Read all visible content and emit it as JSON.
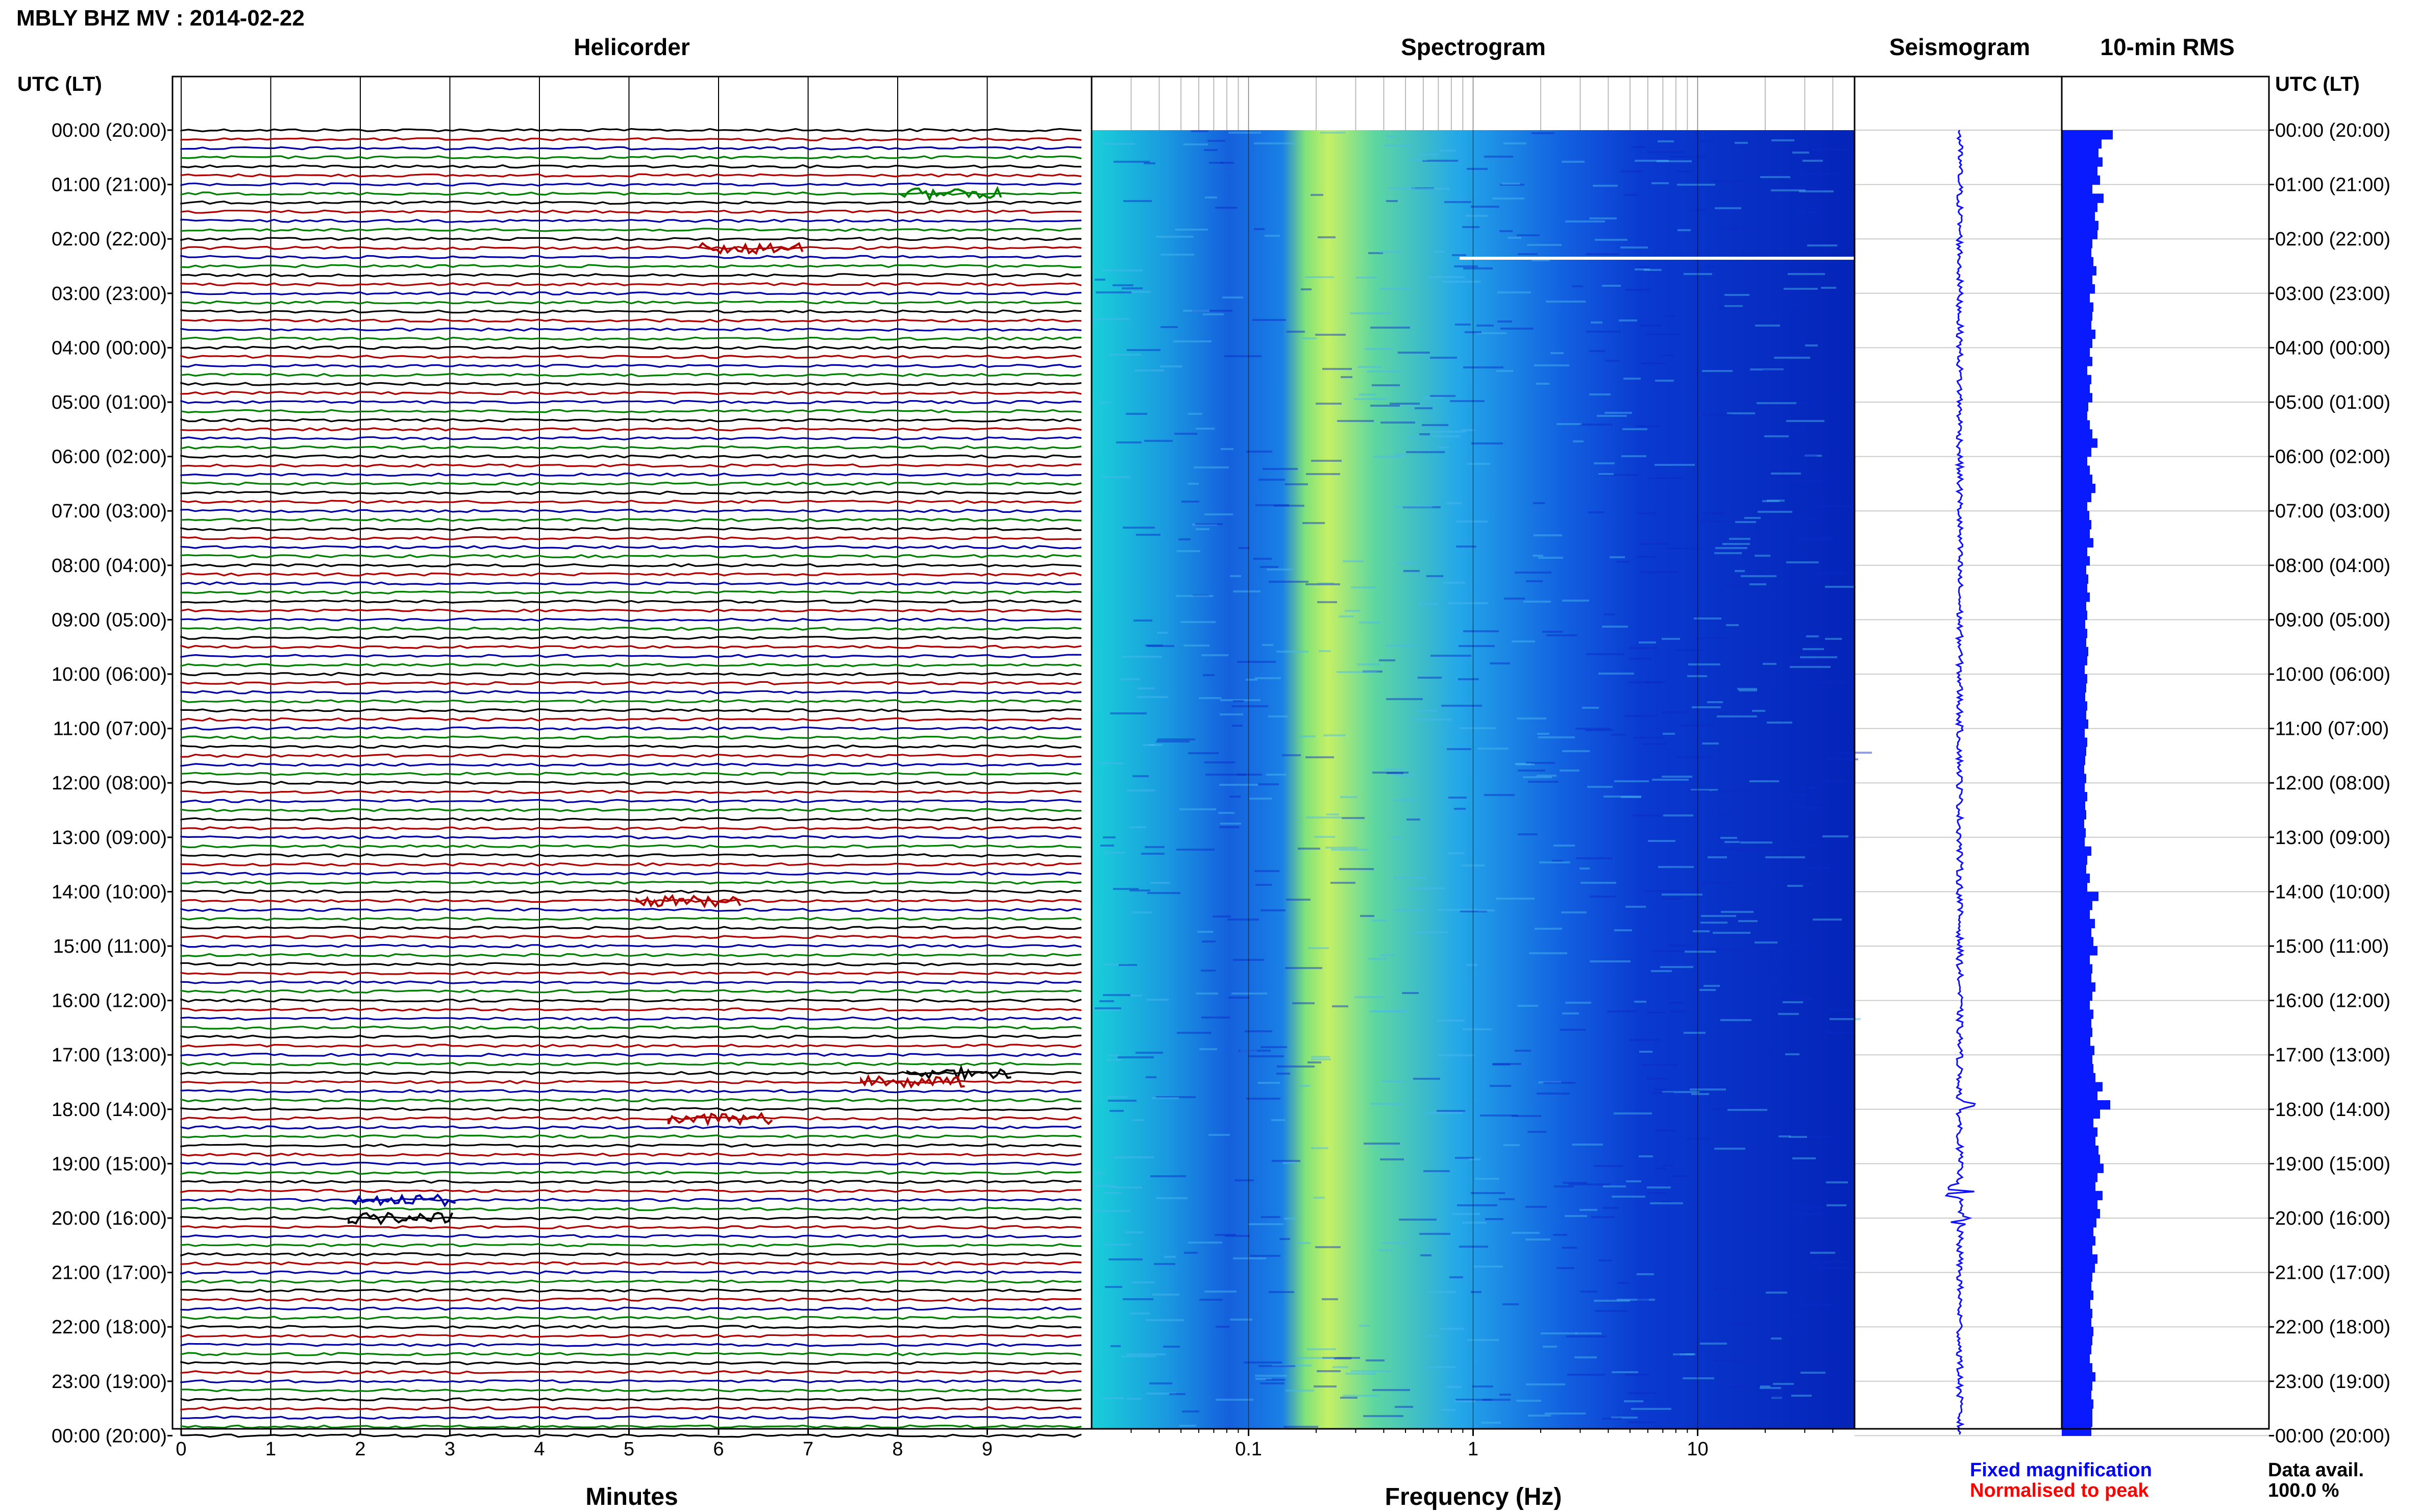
{
  "header": {
    "title": "MBLY BHZ MV : 2014-02-22",
    "utc_label_left": "UTC (LT)",
    "utc_label_right": "UTC (LT)"
  },
  "panels": {
    "helicorder_title": "Helicorder",
    "spectrogram_title": "Spectrogram",
    "seismogram_title": "Seismogram",
    "rms_title": "10-min RMS"
  },
  "axes": {
    "minutes_label": "Minutes",
    "frequency_label": "Frequency (Hz)"
  },
  "legend": {
    "fixed": "Fixed magnification",
    "normalised": "Normalised to peak",
    "data_avail_label": "Data avail.",
    "data_avail_value": "100.0 %"
  },
  "colors": {
    "trace_black": "#000000",
    "trace_red": "#b00000",
    "trace_blue": "#0000a8",
    "trace_green": "#008000",
    "seismogram": "#1010ff",
    "rms_fill": "#0a1aff",
    "legend_blue": "#0000ff",
    "legend_red": "#ff0000"
  },
  "chart_data": [
    {
      "type": "line",
      "title": "Helicorder",
      "xlabel": "Minutes",
      "x_ticks": [
        "0",
        "1",
        "2",
        "3",
        "4",
        "5",
        "6",
        "7",
        "8",
        "9"
      ],
      "xlim": [
        0,
        10
      ],
      "row_labels": [
        "00:00 (20:00)",
        "01:00 (21:00)",
        "02:00 (22:00)",
        "03:00 (23:00)",
        "04:00 (00:00)",
        "05:00 (01:00)",
        "06:00 (02:00)",
        "07:00 (03:00)",
        "08:00 (04:00)",
        "09:00 (05:00)",
        "10:00 (06:00)",
        "11:00 (07:00)",
        "12:00 (08:00)",
        "13:00 (09:00)",
        "14:00 (10:00)",
        "15:00 (11:00)",
        "16:00 (12:00)",
        "17:00 (13:00)",
        "18:00 (14:00)",
        "19:00 (15:00)",
        "20:00 (16:00)",
        "21:00 (17:00)",
        "22:00 (18:00)",
        "23:00 (19:00)",
        "00:00 (20:00)"
      ],
      "traces_per_hour": 6,
      "trace_color_cycle": [
        "black",
        "red",
        "blue",
        "green"
      ],
      "event_hours": [
        1.2,
        2.1,
        14.1,
        17.3,
        17.5,
        18.1,
        19.6,
        20.0
      ]
    },
    {
      "type": "heatmap",
      "title": "Spectrogram",
      "xlabel": "Frequency (Hz)",
      "x_scale": "log",
      "xlim": [
        0.02,
        50
      ],
      "x_ticks": [
        "0.1",
        "1",
        "10"
      ],
      "peak_band_hz": [
        0.18,
        0.5
      ],
      "data_gap_hour": 2.4
    },
    {
      "type": "line",
      "title": "Seismogram",
      "large_amplitude_hours": [
        17.9,
        19.5,
        20.0
      ]
    },
    {
      "type": "bar",
      "title": "10-min RMS",
      "orientation": "horizontal",
      "values": [
        1.0,
        0.78,
        0.72,
        0.8,
        0.7,
        0.75,
        0.6,
        0.82,
        0.7,
        0.65,
        0.72,
        0.7,
        0.6,
        0.58,
        0.62,
        0.68,
        0.6,
        0.65,
        0.55,
        0.62,
        0.6,
        0.58,
        0.66,
        0.6,
        0.55,
        0.6,
        0.5,
        0.58,
        0.55,
        0.6,
        0.52,
        0.5,
        0.55,
        0.6,
        0.7,
        0.58,
        0.5,
        0.55,
        0.6,
        0.66,
        0.58,
        0.5,
        0.54,
        0.58,
        0.55,
        0.62,
        0.5,
        0.55,
        0.48,
        0.52,
        0.5,
        0.55,
        0.48,
        0.5,
        0.46,
        0.5,
        0.48,
        0.52,
        0.5,
        0.45,
        0.5,
        0.48,
        0.46,
        0.5,
        0.48,
        0.52,
        0.45,
        0.5,
        0.48,
        0.46,
        0.44,
        0.48,
        0.45,
        0.5,
        0.46,
        0.48,
        0.44,
        0.47,
        0.45,
        0.58,
        0.5,
        0.48,
        0.55,
        0.5,
        0.72,
        0.6,
        0.55,
        0.65,
        0.58,
        0.62,
        0.7,
        0.55,
        0.6,
        0.58,
        0.66,
        0.6,
        0.55,
        0.62,
        0.58,
        0.6,
        0.56,
        0.64,
        0.6,
        0.62,
        0.66,
        0.8,
        0.7,
        0.95,
        0.75,
        0.62,
        0.7,
        0.66,
        0.72,
        0.75,
        0.82,
        0.7,
        0.66,
        0.8,
        0.7,
        0.75,
        0.68,
        0.62,
        0.66,
        0.6,
        0.7,
        0.65,
        0.6,
        0.58,
        0.62,
        0.56,
        0.6,
        0.58,
        0.62,
        0.6,
        0.58,
        0.55,
        0.6,
        0.66,
        0.6,
        0.58,
        0.62,
        0.6,
        0.6,
        0.58
      ]
    }
  ]
}
